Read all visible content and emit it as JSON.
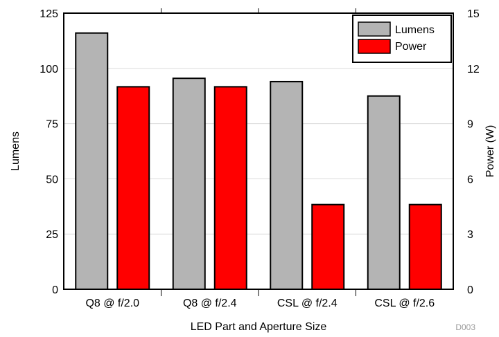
{
  "chart_data": {
    "type": "bar",
    "categories": [
      "Q8 @ f/2.0",
      "Q8 @ f/2.4",
      "CSL @ f/2.4",
      "CSL @ f/2.6"
    ],
    "series": [
      {
        "name": "Lumens",
        "axis": "left",
        "color": "#b4b4b4",
        "values": [
          116,
          95.5,
          94,
          87.5
        ]
      },
      {
        "name": "Power",
        "axis": "right",
        "color": "#ff0000",
        "values": [
          11,
          11,
          4.6,
          4.6
        ]
      }
    ],
    "xlabel": "LED Part and Aperture Size",
    "ylabel": "Lumens",
    "y2label": "Power (W)",
    "ylim": [
      0,
      125
    ],
    "y2lim": [
      0,
      15
    ],
    "yticks": [
      "0",
      "25",
      "50",
      "75",
      "100",
      "125"
    ],
    "y2ticks": [
      "0",
      "3",
      "6",
      "9",
      "12",
      "15"
    ],
    "grid": true,
    "legend_position": "top-right",
    "figure_id": "D003"
  }
}
